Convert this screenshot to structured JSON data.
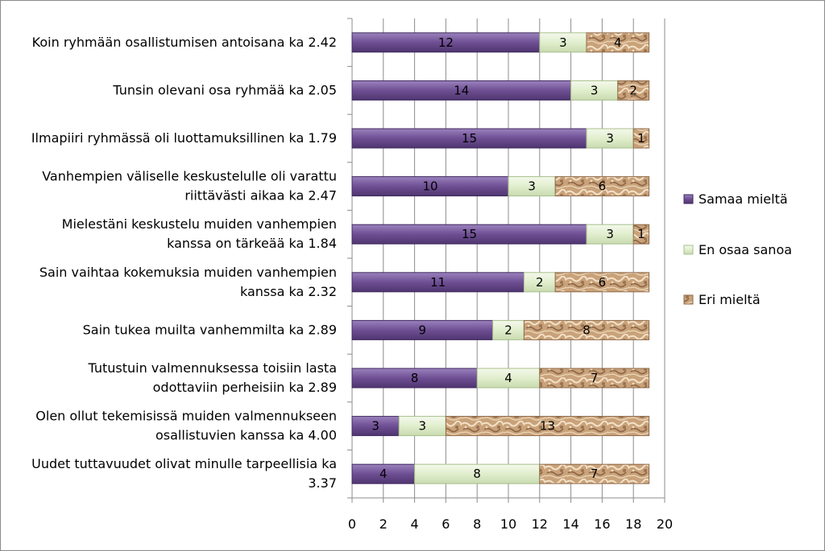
{
  "chart_data": {
    "type": "bar",
    "orientation": "horizontal",
    "stacked": true,
    "categories": [
      "Koin ryhmään osallistumisen antoisana ka 2.42",
      "Tunsin olevani osa ryhmää ka 2.05",
      "Ilmapiiri ryhmässä oli luottamuksillinen ka 1.79",
      "Vanhempien väliselle keskustelulle oli varattu riittävästi aikaa ka 2.47",
      "Mielestäni keskustelu muiden vanhempien kanssa on tärkeää ka 1.84",
      "Sain vaihtaa kokemuksia muiden vanhempien kanssa ka 2.32",
      "Sain tukea muilta vanhemmilta ka 2.89",
      "Tutustuin valmennuksessa toisiin lasta odottaviin perheisiin ka 2.89",
      "Olen ollut tekemisissä muiden valmennukseen osallistuvien kanssa ka 4.00",
      "Uudet tuttavuudet olivat minulle tarpeellisia ka 3.37"
    ],
    "category_lines": [
      [
        "Koin ryhmään osallistumisen antoisana ka 2.42"
      ],
      [
        "Tunsin olevani osa ryhmää ka 2.05"
      ],
      [
        "Ilmapiiri ryhmässä oli luottamuksillinen ka 1.79"
      ],
      [
        "Vanhempien väliselle keskustelulle oli varattu",
        "riittävästi aikaa ka 2.47"
      ],
      [
        "Mielestäni keskustelu muiden vanhempien",
        "kanssa on tärkeää ka 1.84"
      ],
      [
        "Sain vaihtaa kokemuksia muiden vanhempien",
        "kanssa ka 2.32"
      ],
      [
        "Sain tukea muilta vanhemmilta ka 2.89"
      ],
      [
        "Tutustuin valmennuksessa toisiin lasta",
        "odottaviin perheisiin ka 2.89"
      ],
      [
        "Olen ollut tekemisissä muiden valmennukseen",
        "osallistuvien kanssa ka 4.00"
      ],
      [
        "Uudet tuttavuudet olivat minulle tarpeellisia ka",
        "3.37"
      ]
    ],
    "series": [
      {
        "name": "Samaa mieltä",
        "color": "#7a5c9e",
        "values": [
          12,
          14,
          15,
          10,
          15,
          11,
          9,
          8,
          3,
          4
        ]
      },
      {
        "name": "En osaa sanoa",
        "color": "#e4f0d0",
        "values": [
          3,
          3,
          3,
          3,
          3,
          2,
          2,
          4,
          3,
          8
        ]
      },
      {
        "name": "Eri mieltä",
        "color": "#c9a27a",
        "values": [
          4,
          2,
          1,
          6,
          1,
          6,
          8,
          7,
          13,
          7
        ]
      }
    ],
    "xlim": [
      0,
      20
    ],
    "xticks": [
      0,
      2,
      4,
      6,
      8,
      10,
      12,
      14,
      16,
      18,
      20
    ],
    "grid": true,
    "legend_position": "right",
    "title": "",
    "xlabel": "",
    "ylabel": ""
  }
}
